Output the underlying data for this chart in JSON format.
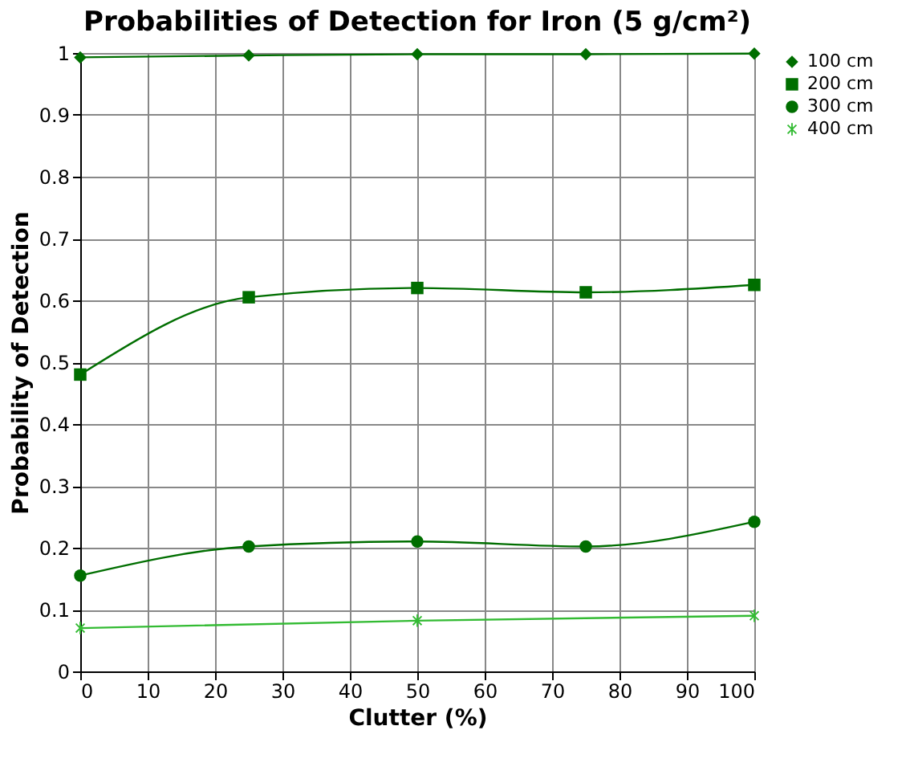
{
  "chart_data": {
    "type": "line",
    "title": "Probabilities of Detection for Iron (5 g/cm²)",
    "xlabel": "Clutter (%)",
    "ylabel": "Probability of Detection",
    "series": [
      {
        "name": "100 cm",
        "color": "#006e00",
        "marker": "diamond",
        "x": [
          0,
          25,
          50,
          75,
          100
        ],
        "values": [
          0.993,
          0.996,
          0.998,
          0.998,
          0.999
        ]
      },
      {
        "name": "200 cm",
        "color": "#006e00",
        "marker": "square",
        "x": [
          0,
          25,
          50,
          75,
          100
        ],
        "values": [
          0.48,
          0.605,
          0.62,
          0.613,
          0.625
        ]
      },
      {
        "name": "300 cm",
        "color": "#006e00",
        "marker": "circle",
        "x": [
          0,
          25,
          50,
          75,
          100
        ],
        "values": [
          0.155,
          0.202,
          0.21,
          0.202,
          0.242
        ]
      },
      {
        "name": "400 cm",
        "color": "#33bb33",
        "marker": "cross",
        "x": [
          0,
          50,
          100
        ],
        "values": [
          0.07,
          0.082,
          0.09
        ]
      }
    ],
    "xlim": [
      0,
      100
    ],
    "xticks": [
      0,
      10,
      20,
      30,
      40,
      50,
      60,
      70,
      80,
      90,
      100
    ],
    "ylim": [
      0,
      1
    ],
    "yticks": [
      0,
      0.1,
      0.2,
      0.3,
      0.4,
      0.5,
      0.6,
      0.7,
      0.8,
      0.9,
      1
    ],
    "grid": true,
    "legend": "right",
    "line_style": "solid"
  }
}
